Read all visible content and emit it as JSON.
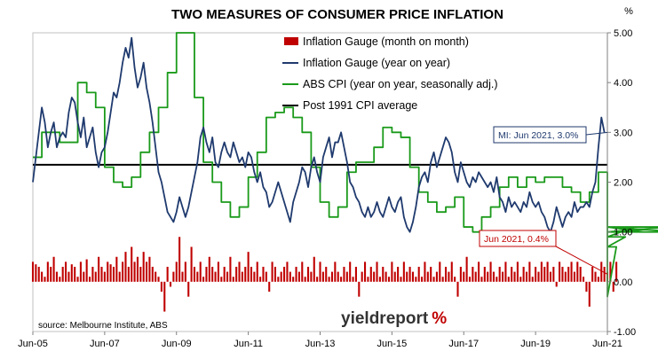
{
  "chart_data": {
    "type": "line",
    "title": "TWO MEASURES OF CONSUMER PRICE INFLATION",
    "unit_label": "%",
    "y_ticks": [
      "5.00",
      "4.00",
      "3.00",
      "2.00",
      "1.00",
      "0.00",
      "-1.00"
    ],
    "ylim": [
      -1,
      5
    ],
    "x_ticks": [
      "Jun-05",
      "Jun-07",
      "Jun-09",
      "Jun-11",
      "Jun-13",
      "Jun-15",
      "Jun-17",
      "Jun-19",
      "Jun-21"
    ],
    "x_range": [
      "Jun-05",
      "Jun-21"
    ],
    "grid": false,
    "legend_position": "top-right",
    "source": "source: Melbourne Institute, ABS",
    "logo": "yieldreport %",
    "series": [
      {
        "name": "Inflation Gauge (month on month)",
        "kind": "bar",
        "color": "#c00000",
        "x_start": "Jun-05",
        "step": "month",
        "values": [
          0.4,
          0.35,
          0.3,
          0.2,
          0.1,
          0.4,
          0.3,
          0.5,
          0.2,
          0.1,
          0.3,
          0.4,
          0.2,
          0.35,
          0.3,
          0.1,
          0.4,
          0.2,
          0.45,
          0.1,
          0.3,
          0.2,
          0.5,
          0.3,
          0.2,
          0.4,
          0.35,
          0.3,
          0.5,
          0.2,
          0.4,
          0.6,
          0.3,
          0.7,
          0.4,
          0.5,
          0.3,
          0.6,
          0.4,
          0.5,
          0.3,
          0.2,
          0.1,
          -0.2,
          -0.6,
          0.3,
          -0.1,
          0.2,
          0.4,
          0.9,
          0.2,
          0.4,
          -0.3,
          0.7,
          0.3,
          0.2,
          0.4,
          0.1,
          0.3,
          0.5,
          0.3,
          0.2,
          0.4,
          0.1,
          0.3,
          0.2,
          0.5,
          0.1,
          0.3,
          0.4,
          0.2,
          0.3,
          0.6,
          0.3,
          0.2,
          0.4,
          0.1,
          0.3,
          0.2,
          -0.2,
          0.4,
          0.3,
          0.1,
          0.2,
          0.3,
          0.4,
          0.2,
          0.1,
          0.3,
          0.2,
          0.4,
          0.1,
          0.3,
          0.2,
          0.5,
          0.1,
          0.4,
          0.2,
          0.3,
          0.1,
          0.2,
          0.4,
          0.2,
          0.1,
          0.3,
          0.2,
          0.4,
          0.1,
          0.3,
          -0.3,
          0.2,
          0.4,
          0.1,
          0.3,
          0.2,
          0.4,
          0.1,
          0.3,
          0.2,
          0.1,
          0.4,
          0.2,
          0.3,
          0.1,
          0.4,
          0.2,
          0.3,
          0.2,
          0.1,
          0.3,
          0.1,
          0.4,
          0.2,
          0.3,
          0.1,
          0.2,
          0.4,
          0.1,
          0.3,
          0.2,
          0.4,
          0.1,
          -0.3,
          0.3,
          0.2,
          0.5,
          0.1,
          0.3,
          0.2,
          0.4,
          0.1,
          0.3,
          0.2,
          0.4,
          0.2,
          0.1,
          0.3,
          0.2,
          0.4,
          0.1,
          0.3,
          0.2,
          0.4,
          0.1,
          0.3,
          0.2,
          0.4,
          0.1,
          0.3,
          0.2,
          0.4,
          0.3,
          0.4,
          0.2,
          0.3,
          -0.1,
          0.4,
          0.3,
          0.2,
          0.3,
          0.4,
          0.2,
          0.4,
          0.3,
          0.1,
          -0.2,
          -0.5,
          0.3,
          0.2,
          0.1,
          0.4,
          0.3,
          0.2,
          0.4,
          -0.2,
          0.4
        ]
      },
      {
        "name": "Inflation Gauge (year on year)",
        "kind": "line",
        "color": "#1f3a6e",
        "x_start": "Jun-05",
        "step": "month",
        "values": [
          2.0,
          2.5,
          3.0,
          3.5,
          3.2,
          2.7,
          3.0,
          3.2,
          2.7,
          2.9,
          3.0,
          2.9,
          3.4,
          3.7,
          3.6,
          3.2,
          2.9,
          3.3,
          2.7,
          2.9,
          3.1,
          2.6,
          2.3,
          2.6,
          2.7,
          3.0,
          3.4,
          3.8,
          3.7,
          4.0,
          4.4,
          4.7,
          4.5,
          4.9,
          4.3,
          3.9,
          4.1,
          4.4,
          3.9,
          3.6,
          3.2,
          2.7,
          2.2,
          2.0,
          1.7,
          1.4,
          1.3,
          1.2,
          1.4,
          1.7,
          1.5,
          1.3,
          1.5,
          1.8,
          2.1,
          2.4,
          2.9,
          3.1,
          2.8,
          2.6,
          2.9,
          2.4,
          2.3,
          2.6,
          2.8,
          2.6,
          2.5,
          2.8,
          2.6,
          2.4,
          2.5,
          2.3,
          2.6,
          2.5,
          2.2,
          2.0,
          2.2,
          1.9,
          1.8,
          1.5,
          1.6,
          1.8,
          2.0,
          1.8,
          1.6,
          1.4,
          1.2,
          1.6,
          1.8,
          2.0,
          2.3,
          2.2,
          1.9,
          2.3,
          2.5,
          2.2,
          2.0,
          2.5,
          2.7,
          2.9,
          2.5,
          2.8,
          2.8,
          3.0,
          2.7,
          2.4,
          2.0,
          1.9,
          1.7,
          1.6,
          1.4,
          1.3,
          1.5,
          1.3,
          1.4,
          1.6,
          1.4,
          1.3,
          1.5,
          1.7,
          1.5,
          1.4,
          1.6,
          1.7,
          1.3,
          1.1,
          1.0,
          1.2,
          1.5,
          1.9,
          2.1,
          2.2,
          2.0,
          2.4,
          2.6,
          2.3,
          2.5,
          2.7,
          2.9,
          2.8,
          2.6,
          2.2,
          2.0,
          2.4,
          2.2,
          2.0,
          1.9,
          2.1,
          2.0,
          2.2,
          2.1,
          2.0,
          1.9,
          2.0,
          1.8,
          2.1,
          1.7,
          1.6,
          1.4,
          1.7,
          1.5,
          1.6,
          1.5,
          1.4,
          1.6,
          1.5,
          1.8,
          1.6,
          1.5,
          1.6,
          1.4,
          1.3,
          1.1,
          1.0,
          1.2,
          1.5,
          1.3,
          1.1,
          1.3,
          1.4,
          1.3,
          1.6,
          1.4,
          1.5,
          1.5,
          1.6,
          1.5,
          1.8,
          2.0,
          2.7,
          3.3,
          3.0
        ]
      },
      {
        "name": "ABS CPI (year on year, seasonally adj.)",
        "kind": "step",
        "color": "#1a9a1a",
        "x_start": "Jun-05",
        "step": "quarter",
        "values": [
          2.5,
          3.0,
          3.0,
          2.8,
          2.8,
          4.0,
          3.8,
          3.5,
          2.3,
          2.0,
          1.9,
          2.1,
          2.6,
          3.0,
          3.5,
          4.2,
          5.0,
          5.0,
          3.7,
          2.4,
          2.0,
          1.6,
          1.3,
          1.5,
          2.1,
          2.6,
          3.3,
          3.4,
          3.5,
          3.3,
          3.0,
          2.3,
          1.6,
          1.3,
          1.5,
          2.2,
          2.4,
          2.4,
          2.7,
          3.1,
          3.0,
          2.9,
          2.3,
          1.8,
          1.6,
          1.4,
          1.5,
          1.7,
          1.1,
          1.0,
          1.3,
          1.5,
          1.9,
          2.1,
          1.9,
          2.1,
          2.0,
          2.1,
          2.1,
          1.9,
          1.8,
          1.6,
          1.8,
          2.2,
          -0.3,
          0.7,
          0.9,
          1.1,
          1.0,
          1.0,
          1.0,
          1.1,
          1.0
        ]
      },
      {
        "name": "Post 1991 CPI average",
        "kind": "hline",
        "color": "#000000",
        "value": 2.35
      }
    ],
    "annotations": [
      {
        "text": "MI: Jun 2021, 3.0%",
        "color": "#1f3a6e",
        "x": "Jun-21",
        "y": 3.0
      },
      {
        "text": "Jun 2021, 0.4%",
        "color": "#c00000",
        "x": "Jun-21",
        "y": 0.4
      }
    ]
  }
}
